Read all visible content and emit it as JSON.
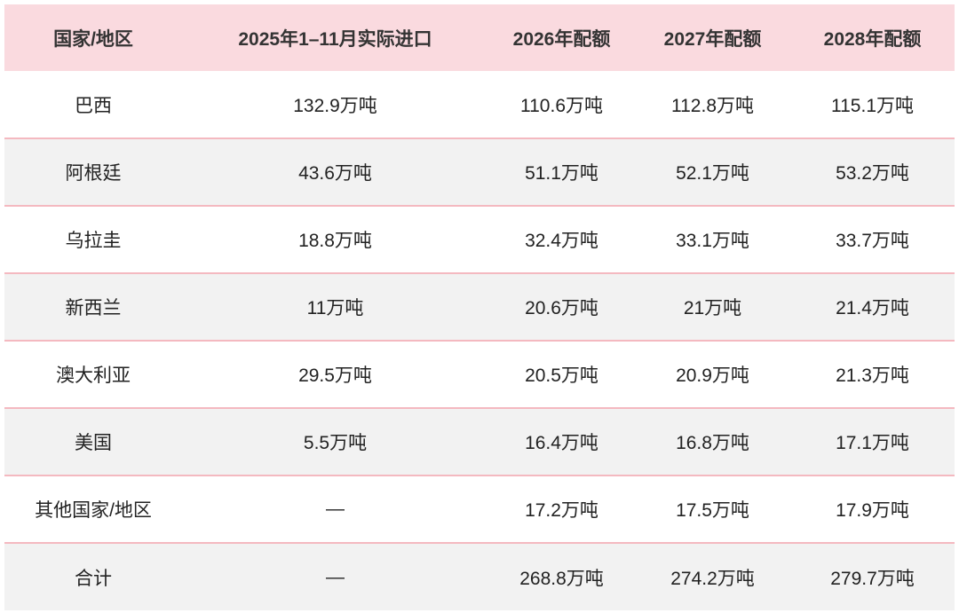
{
  "header": [
    "国家/地区",
    "2025年1–11月实际进口",
    "2026年配额",
    "2027年配额",
    "2028年配额"
  ],
  "rows": [
    [
      "巴西",
      "132.9万吨",
      "110.6万吨",
      "112.8万吨",
      "115.1万吨"
    ],
    [
      "阿根廷",
      "43.6万吨",
      "51.1万吨",
      "52.1万吨",
      "53.2万吨"
    ],
    [
      "乌拉圭",
      "18.8万吨",
      "32.4万吨",
      "33.1万吨",
      "33.7万吨"
    ],
    [
      "新西兰",
      "11万吨",
      "20.6万吨",
      "21万吨",
      "21.4万吨"
    ],
    [
      "澳大利亚",
      "29.5万吨",
      "20.5万吨",
      "20.9万吨",
      "21.3万吨"
    ],
    [
      "美国",
      "5.5万吨",
      "16.4万吨",
      "16.8万吨",
      "17.1万吨"
    ],
    [
      "其他国家/地区",
      "—",
      "17.2万吨",
      "17.5万吨",
      "17.9万吨"
    ],
    [
      "合计",
      "—",
      "268.8万吨",
      "274.2万吨",
      "279.7万吨"
    ]
  ],
  "colors": {
    "header_bg": "#fadadf",
    "row_alt_bg": "#f2f2f2",
    "divider": "#f4b9c0"
  }
}
